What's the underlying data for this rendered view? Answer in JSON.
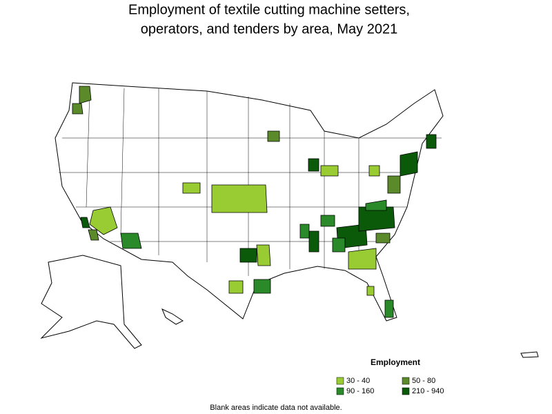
{
  "title": [
    "Employment of textile cutting machine setters,",
    "operators, and tenders by area, May 2021"
  ],
  "legend": {
    "title": "Employment",
    "items": [
      {
        "label": "30 - 40",
        "color": "#99cc33"
      },
      {
        "label": "50 - 80",
        "color": "#5a8a2a"
      },
      {
        "label": "90 - 160",
        "color": "#2a8a2a"
      },
      {
        "label": "210 - 940",
        "color": "#0a5a0a"
      }
    ]
  },
  "note": "Blank areas indicate data not available."
}
